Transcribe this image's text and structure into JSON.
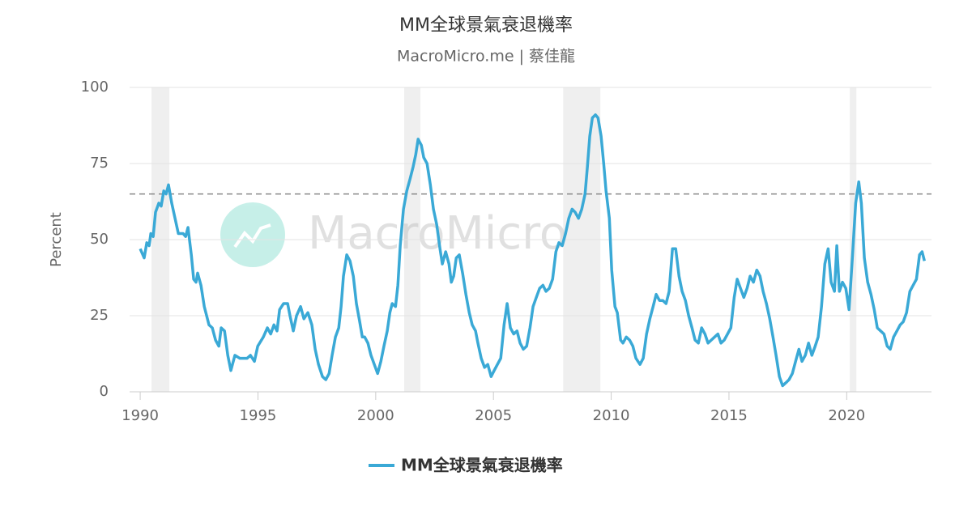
{
  "chart_data": {
    "type": "line",
    "title": "MM全球景氣衰退機率",
    "subtitle": "MacroMicro.me | 蔡佳龍",
    "watermark": "MacroMicro",
    "ylabel": "Percent",
    "xlim": [
      1989.55,
      2023.6
    ],
    "xticks": [
      1990,
      1995,
      2000,
      2005,
      2010,
      2015,
      2020
    ],
    "ylim": [
      0,
      100
    ],
    "yticks": [
      0,
      25,
      50,
      75,
      100
    ],
    "grid": true,
    "threshold": 65,
    "legend": "bottom",
    "recessions": [
      [
        1990.48,
        1991.24
      ],
      [
        2001.21,
        2001.9
      ],
      [
        2007.96,
        2009.54
      ],
      [
        2020.13,
        2020.41
      ]
    ],
    "x": [
      1990.0,
      1990.17,
      1990.28,
      1990.38,
      1990.45,
      1990.55,
      1990.65,
      1990.79,
      1990.89,
      1991.0,
      1991.1,
      1991.2,
      1991.34,
      1991.48,
      1991.62,
      1991.82,
      1991.93,
      1992.03,
      1992.17,
      1992.27,
      1992.37,
      1992.44,
      1992.58,
      1992.72,
      1992.92,
      1993.06,
      1993.2,
      1993.34,
      1993.44,
      1993.58,
      1993.72,
      1993.85,
      1994.02,
      1994.23,
      1994.54,
      1994.68,
      1994.85,
      1994.99,
      1995.23,
      1995.4,
      1995.54,
      1995.68,
      1995.81,
      1995.92,
      1996.09,
      1996.26,
      1996.36,
      1996.5,
      1996.64,
      1996.81,
      1996.95,
      1997.12,
      1997.29,
      1997.43,
      1997.57,
      1997.74,
      1997.88,
      1998.02,
      1998.15,
      1998.29,
      1998.43,
      1998.53,
      1998.63,
      1998.77,
      1998.91,
      1999.05,
      1999.18,
      1999.32,
      1999.43,
      1999.53,
      1999.67,
      1999.8,
      1999.94,
      2000.08,
      2000.22,
      2000.35,
      2000.49,
      2000.6,
      2000.7,
      2000.84,
      2000.94,
      2001.04,
      2001.18,
      2001.32,
      2001.46,
      2001.59,
      2001.7,
      2001.8,
      2001.94,
      2002.04,
      2002.18,
      2002.32,
      2002.45,
      2002.59,
      2002.73,
      2002.83,
      2002.97,
      2003.11,
      2003.21,
      2003.31,
      2003.42,
      2003.55,
      2003.69,
      2003.83,
      2003.97,
      2004.1,
      2004.24,
      2004.34,
      2004.48,
      2004.62,
      2004.76,
      2004.9,
      2005.03,
      2005.17,
      2005.31,
      2005.45,
      2005.58,
      2005.72,
      2005.86,
      2006.0,
      2006.13,
      2006.27,
      2006.41,
      2006.55,
      2006.68,
      2006.82,
      2006.96,
      2007.1,
      2007.23,
      2007.37,
      2007.51,
      2007.65,
      2007.78,
      2007.92,
      2008.06,
      2008.2,
      2008.34,
      2008.47,
      2008.61,
      2008.75,
      2008.89,
      2008.99,
      2009.09,
      2009.2,
      2009.33,
      2009.44,
      2009.57,
      2009.68,
      2009.78,
      2009.92,
      2010.02,
      2010.16,
      2010.26,
      2010.4,
      2010.5,
      2010.64,
      2010.78,
      2010.92,
      2011.05,
      2011.22,
      2011.36,
      2011.5,
      2011.64,
      2011.78,
      2011.91,
      2012.05,
      2012.19,
      2012.33,
      2012.46,
      2012.6,
      2012.74,
      2012.88,
      2013.01,
      2013.15,
      2013.29,
      2013.43,
      2013.56,
      2013.7,
      2013.84,
      2013.98,
      2014.11,
      2014.25,
      2014.39,
      2014.53,
      2014.66,
      2014.8,
      2014.94,
      2015.08,
      2015.22,
      2015.35,
      2015.49,
      2015.63,
      2015.77,
      2015.9,
      2016.04,
      2016.18,
      2016.32,
      2016.45,
      2016.59,
      2016.73,
      2016.87,
      2017.0,
      2017.14,
      2017.28,
      2017.42,
      2017.55,
      2017.69,
      2017.83,
      2017.97,
      2018.1,
      2018.24,
      2018.38,
      2018.52,
      2018.66,
      2018.79,
      2018.93,
      2019.07,
      2019.21,
      2019.34,
      2019.48,
      2019.58,
      2019.69,
      2019.82,
      2019.96,
      2020.1,
      2020.24,
      2020.38,
      2020.51,
      2020.62,
      2020.75,
      2020.89,
      2021.03,
      2021.17,
      2021.3,
      2021.44,
      2021.58,
      2021.72,
      2021.85,
      2021.99,
      2022.13,
      2022.27,
      2022.4,
      2022.54,
      2022.68,
      2022.82,
      2022.96,
      2023.09,
      2023.2,
      2023.3
    ],
    "series": [
      {
        "name": "MM全球景氣衰退機率",
        "color": "#3aa9d6",
        "values": [
          47,
          44,
          49,
          48,
          52,
          51,
          59,
          62,
          61,
          66,
          65,
          68,
          62,
          57,
          52,
          52,
          51,
          54,
          45,
          37,
          36,
          39,
          35,
          28,
          22,
          21,
          17,
          15,
          21,
          20,
          12,
          7,
          12,
          11,
          11,
          12,
          10,
          15,
          18,
          21,
          19,
          22,
          20,
          27,
          29,
          29,
          25,
          20,
          25,
          28,
          24,
          26,
          22,
          14,
          9,
          5,
          4,
          6,
          12,
          18,
          21,
          28,
          38,
          45,
          43,
          38,
          29,
          23,
          18,
          18,
          16,
          12,
          9,
          6,
          10,
          15,
          20,
          26,
          29,
          28,
          35,
          48,
          60,
          66,
          70,
          74,
          78,
          83,
          81,
          77,
          75,
          68,
          60,
          55,
          47,
          42,
          46,
          42,
          36,
          38,
          44,
          45,
          39,
          32,
          26,
          22,
          20,
          16,
          11,
          8,
          9,
          5,
          7,
          9,
          11,
          22,
          29,
          21,
          19,
          20,
          16,
          14,
          15,
          21,
          28,
          31,
          34,
          35,
          33,
          34,
          37,
          46,
          49,
          48,
          52,
          57,
          60,
          59,
          57,
          60,
          65,
          74,
          84,
          90,
          91,
          90,
          84,
          75,
          66,
          57,
          40,
          28,
          26,
          17,
          16,
          18,
          17,
          15,
          11,
          9,
          11,
          19,
          24,
          28,
          32,
          30,
          30,
          29,
          33,
          47,
          47,
          38,
          33,
          30,
          25,
          21,
          17,
          16,
          21,
          19,
          16,
          17,
          18,
          19,
          16,
          17,
          19,
          21,
          31,
          37,
          34,
          31,
          34,
          38,
          36,
          40,
          38,
          33,
          29,
          24,
          18,
          12,
          5,
          2,
          3,
          4,
          6,
          10,
          14,
          10,
          12,
          16,
          12,
          15,
          18,
          28,
          42,
          47,
          36,
          33,
          48,
          33,
          36,
          34,
          27,
          44,
          62,
          69,
          62,
          44,
          36,
          32,
          27,
          21,
          20,
          19,
          15,
          14,
          18,
          20,
          22,
          23,
          26,
          33,
          35,
          37,
          45,
          46,
          43
        ]
      }
    ]
  }
}
